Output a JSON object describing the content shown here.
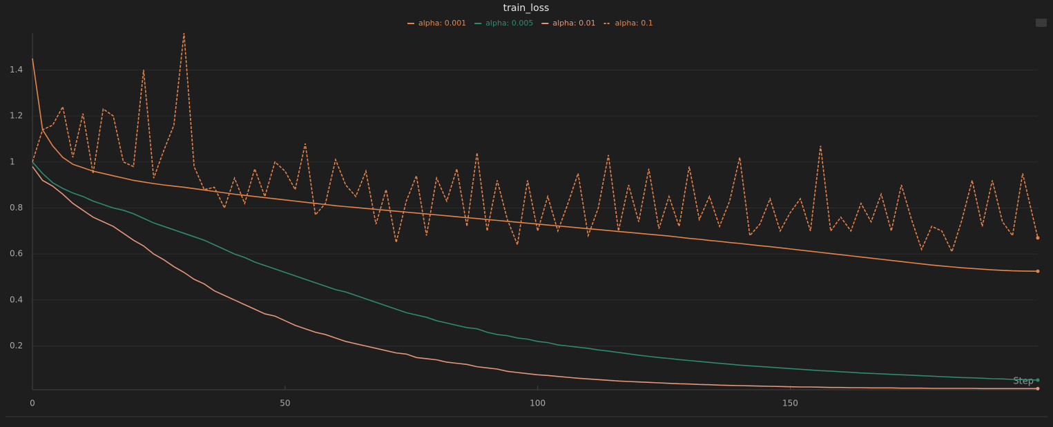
{
  "chart_data": {
    "type": "line",
    "title": "train_loss",
    "x_label": "Step",
    "x": [
      0,
      2,
      4,
      6,
      8,
      10,
      12,
      14,
      16,
      18,
      20,
      22,
      24,
      26,
      28,
      30,
      32,
      34,
      36,
      38,
      40,
      42,
      44,
      46,
      48,
      50,
      52,
      54,
      56,
      58,
      60,
      62,
      64,
      66,
      68,
      70,
      72,
      74,
      76,
      78,
      80,
      82,
      84,
      86,
      88,
      90,
      92,
      94,
      96,
      98,
      100,
      102,
      104,
      106,
      108,
      110,
      112,
      114,
      116,
      118,
      120,
      122,
      124,
      126,
      128,
      130,
      132,
      134,
      136,
      138,
      140,
      142,
      144,
      146,
      148,
      150,
      152,
      154,
      156,
      158,
      160,
      162,
      164,
      166,
      168,
      170,
      172,
      174,
      176,
      178,
      180,
      182,
      184,
      186,
      188,
      190,
      192,
      194,
      196,
      199
    ],
    "series": [
      {
        "name": "alpha: 0.001",
        "color": "#e8844a",
        "dashed": false,
        "values": [
          1.45,
          1.14,
          1.07,
          1.02,
          0.99,
          0.975,
          0.96,
          0.95,
          0.94,
          0.93,
          0.92,
          0.913,
          0.906,
          0.9,
          0.895,
          0.89,
          0.884,
          0.878,
          0.872,
          0.866,
          0.86,
          0.855,
          0.85,
          0.845,
          0.84,
          0.835,
          0.83,
          0.825,
          0.82,
          0.815,
          0.81,
          0.806,
          0.802,
          0.798,
          0.794,
          0.79,
          0.786,
          0.782,
          0.778,
          0.774,
          0.77,
          0.766,
          0.762,
          0.758,
          0.754,
          0.75,
          0.746,
          0.742,
          0.738,
          0.734,
          0.73,
          0.726,
          0.722,
          0.718,
          0.714,
          0.71,
          0.706,
          0.702,
          0.698,
          0.694,
          0.69,
          0.686,
          0.682,
          0.678,
          0.673,
          0.668,
          0.664,
          0.659,
          0.655,
          0.65,
          0.646,
          0.641,
          0.636,
          0.632,
          0.627,
          0.622,
          0.617,
          0.612,
          0.607,
          0.602,
          0.597,
          0.592,
          0.587,
          0.582,
          0.577,
          0.572,
          0.567,
          0.562,
          0.557,
          0.552,
          0.548,
          0.544,
          0.54,
          0.537,
          0.534,
          0.531,
          0.529,
          0.527,
          0.526,
          0.525
        ]
      },
      {
        "name": "alpha: 0.005",
        "color": "#2e8b70",
        "dashed": false,
        "values": [
          1.0,
          0.95,
          0.91,
          0.885,
          0.865,
          0.85,
          0.83,
          0.815,
          0.8,
          0.79,
          0.775,
          0.755,
          0.735,
          0.72,
          0.705,
          0.69,
          0.675,
          0.66,
          0.64,
          0.62,
          0.6,
          0.585,
          0.565,
          0.55,
          0.535,
          0.52,
          0.505,
          0.49,
          0.475,
          0.46,
          0.445,
          0.435,
          0.42,
          0.405,
          0.39,
          0.375,
          0.36,
          0.345,
          0.335,
          0.325,
          0.31,
          0.3,
          0.29,
          0.28,
          0.275,
          0.26,
          0.25,
          0.245,
          0.235,
          0.23,
          0.22,
          0.215,
          0.205,
          0.2,
          0.195,
          0.19,
          0.183,
          0.178,
          0.172,
          0.166,
          0.16,
          0.155,
          0.15,
          0.146,
          0.141,
          0.137,
          0.133,
          0.129,
          0.125,
          0.121,
          0.117,
          0.114,
          0.111,
          0.108,
          0.105,
          0.102,
          0.099,
          0.096,
          0.093,
          0.091,
          0.088,
          0.086,
          0.083,
          0.081,
          0.079,
          0.077,
          0.075,
          0.073,
          0.071,
          0.069,
          0.067,
          0.065,
          0.063,
          0.062,
          0.06,
          0.058,
          0.057,
          0.055,
          0.054,
          0.052
        ]
      },
      {
        "name": "alpha: 0.01",
        "color": "#e8967a",
        "dashed": false,
        "values": [
          0.98,
          0.92,
          0.895,
          0.86,
          0.82,
          0.79,
          0.76,
          0.74,
          0.72,
          0.69,
          0.66,
          0.635,
          0.6,
          0.575,
          0.545,
          0.52,
          0.49,
          0.47,
          0.44,
          0.42,
          0.4,
          0.38,
          0.36,
          0.34,
          0.33,
          0.31,
          0.29,
          0.275,
          0.26,
          0.25,
          0.235,
          0.22,
          0.21,
          0.2,
          0.19,
          0.18,
          0.17,
          0.165,
          0.15,
          0.145,
          0.14,
          0.13,
          0.125,
          0.12,
          0.11,
          0.105,
          0.1,
          0.09,
          0.085,
          0.08,
          0.075,
          0.072,
          0.068,
          0.064,
          0.06,
          0.057,
          0.054,
          0.051,
          0.048,
          0.046,
          0.044,
          0.042,
          0.04,
          0.038,
          0.036,
          0.035,
          0.033,
          0.032,
          0.03,
          0.029,
          0.028,
          0.027,
          0.026,
          0.025,
          0.024,
          0.023,
          0.022,
          0.022,
          0.021,
          0.02,
          0.02,
          0.019,
          0.019,
          0.018,
          0.018,
          0.018,
          0.017,
          0.017,
          0.017,
          0.016,
          0.016,
          0.016,
          0.016,
          0.016,
          0.015,
          0.015,
          0.015,
          0.015,
          0.015,
          0.015
        ]
      },
      {
        "name": "alpha: 0.1",
        "color": "#e8844a",
        "dashed": true,
        "values": [
          1.0,
          1.14,
          1.16,
          1.24,
          1.02,
          1.21,
          0.95,
          1.23,
          1.2,
          1.0,
          0.98,
          1.4,
          0.93,
          1.05,
          1.16,
          1.56,
          0.98,
          0.88,
          0.89,
          0.8,
          0.93,
          0.82,
          0.97,
          0.85,
          1.0,
          0.96,
          0.88,
          1.08,
          0.77,
          0.82,
          1.01,
          0.9,
          0.85,
          0.96,
          0.73,
          0.88,
          0.65,
          0.83,
          0.94,
          0.68,
          0.93,
          0.83,
          0.97,
          0.72,
          1.04,
          0.7,
          0.92,
          0.75,
          0.64,
          0.92,
          0.7,
          0.85,
          0.7,
          0.82,
          0.95,
          0.68,
          0.8,
          1.03,
          0.7,
          0.9,
          0.74,
          0.97,
          0.71,
          0.85,
          0.72,
          0.98,
          0.75,
          0.85,
          0.72,
          0.83,
          1.02,
          0.68,
          0.73,
          0.84,
          0.7,
          0.78,
          0.84,
          0.7,
          1.07,
          0.7,
          0.76,
          0.7,
          0.82,
          0.74,
          0.86,
          0.7,
          0.9,
          0.75,
          0.62,
          0.72,
          0.7,
          0.61,
          0.75,
          0.92,
          0.72,
          0.92,
          0.74,
          0.68,
          0.95,
          0.67
        ]
      }
    ],
    "xlim": [
      0,
      199
    ],
    "ylim": [
      0.01,
      1.56
    ],
    "xticks": [
      0,
      50,
      100,
      150
    ],
    "yticks": [
      0.2,
      0.4,
      0.6,
      0.8,
      1,
      1.2,
      1.4
    ],
    "grid": true
  }
}
